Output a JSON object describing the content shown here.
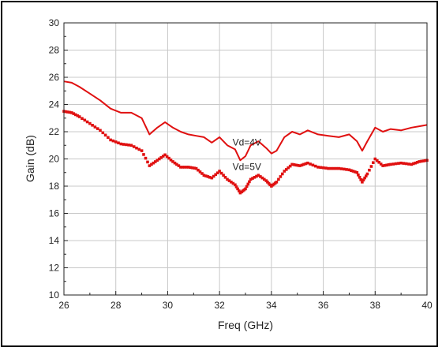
{
  "chart_data": {
    "type": "line",
    "title": "",
    "xlabel": "Freq (GHz)",
    "ylabel": "Gain (dB)",
    "xlim": [
      26,
      40
    ],
    "ylim": [
      10,
      30
    ],
    "x_ticks": [
      26,
      28,
      30,
      32,
      34,
      36,
      38,
      40
    ],
    "y_ticks": [
      10,
      12,
      14,
      16,
      18,
      20,
      22,
      24,
      26,
      28,
      30
    ],
    "grid": true,
    "legend": "none",
    "color": "#e01010",
    "annotations": [
      {
        "text": "Vd=4V",
        "x": 32.5,
        "y": 21.0
      },
      {
        "text": "Vd=5V",
        "x": 32.5,
        "y": 19.2
      }
    ],
    "series": [
      {
        "style": "solid-line",
        "x": [
          26.0,
          26.3,
          26.6,
          27.0,
          27.4,
          27.8,
          28.2,
          28.6,
          29.0,
          29.3,
          29.6,
          29.9,
          30.2,
          30.5,
          30.8,
          31.1,
          31.4,
          31.7,
          32.0,
          32.3,
          32.6,
          32.8,
          33.0,
          33.2,
          33.5,
          33.8,
          34.0,
          34.2,
          34.5,
          34.8,
          35.1,
          35.4,
          35.8,
          36.2,
          36.6,
          37.0,
          37.3,
          37.5,
          37.7,
          38.0,
          38.3,
          38.6,
          39.0,
          39.4,
          39.7,
          40.0
        ],
        "y": [
          25.7,
          25.6,
          25.3,
          24.8,
          24.3,
          23.7,
          23.4,
          23.4,
          23.0,
          21.8,
          22.3,
          22.7,
          22.3,
          22.0,
          21.8,
          21.7,
          21.6,
          21.2,
          21.6,
          21.0,
          20.7,
          19.9,
          20.2,
          21.0,
          21.3,
          20.8,
          20.4,
          20.6,
          21.6,
          22.0,
          21.8,
          22.1,
          21.8,
          21.7,
          21.6,
          21.8,
          21.3,
          20.6,
          21.3,
          22.3,
          22.0,
          22.2,
          22.1,
          22.3,
          22.4,
          22.5
        ]
      },
      {
        "style": "dotted-markers",
        "x": [
          26.0,
          26.3,
          26.6,
          27.0,
          27.4,
          27.8,
          28.2,
          28.6,
          29.0,
          29.3,
          29.6,
          29.9,
          30.2,
          30.5,
          30.8,
          31.1,
          31.4,
          31.7,
          32.0,
          32.3,
          32.6,
          32.8,
          33.0,
          33.2,
          33.5,
          33.8,
          34.0,
          34.2,
          34.5,
          34.8,
          35.1,
          35.4,
          35.8,
          36.2,
          36.6,
          37.0,
          37.3,
          37.5,
          37.7,
          38.0,
          38.3,
          38.6,
          39.0,
          39.4,
          39.7,
          40.0
        ],
        "y": [
          23.5,
          23.4,
          23.1,
          22.6,
          22.1,
          21.4,
          21.1,
          21.0,
          20.6,
          19.5,
          19.9,
          20.3,
          19.8,
          19.4,
          19.4,
          19.3,
          18.8,
          18.6,
          19.1,
          18.5,
          18.1,
          17.5,
          17.8,
          18.5,
          18.8,
          18.4,
          18.0,
          18.3,
          19.1,
          19.6,
          19.5,
          19.7,
          19.4,
          19.3,
          19.3,
          19.2,
          19.0,
          18.3,
          18.9,
          20.0,
          19.5,
          19.6,
          19.7,
          19.6,
          19.8,
          19.9
        ]
      }
    ]
  }
}
